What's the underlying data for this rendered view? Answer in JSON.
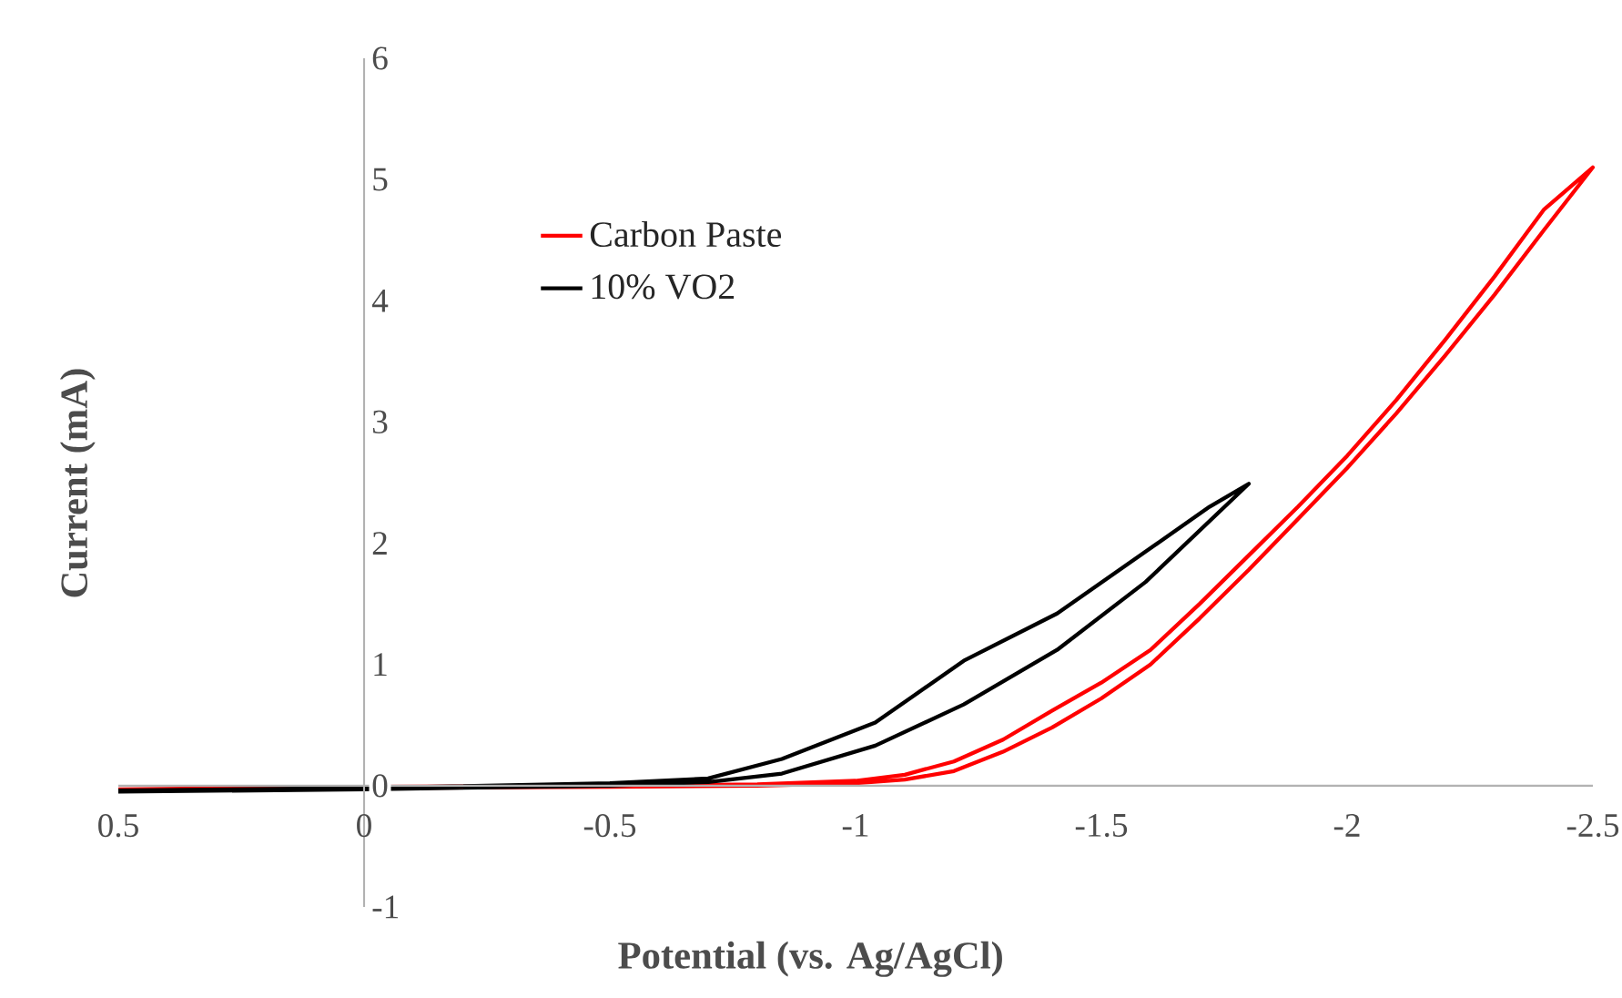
{
  "chart_data": {
    "type": "line",
    "xlabel": "Potential (vs. Ag/AgCl)",
    "ylabel": "Current (mA)",
    "xlim": [
      0.5,
      -2.5
    ],
    "xticks": [
      0.5,
      0,
      -0.5,
      -1,
      -1.5,
      -2,
      -2.5
    ],
    "ylim": [
      -1,
      6
    ],
    "yticks": [
      -1,
      0,
      1,
      2,
      3,
      4,
      5,
      6
    ],
    "grid": false,
    "legend": "top left",
    "marker": "none",
    "line_style": "solid",
    "series": [
      {
        "name": "Carbon Paste",
        "color": "#ff0000",
        "x": [
          0.5,
          0,
          -0.5,
          -0.8,
          -1.0,
          -1.1,
          -1.2,
          -1.3,
          -1.4,
          -1.5,
          -1.6,
          -1.7,
          -1.8,
          -1.9,
          -2.0,
          -2.1,
          -2.2,
          -2.3,
          -2.4,
          -2.5,
          -2.4,
          -2.3,
          -2.2,
          -2.1,
          -2.0,
          -1.9,
          -1.8,
          -1.7,
          -1.6,
          -1.5,
          -1.4,
          -1.3,
          -1.2,
          -1.1,
          -1.0,
          -0.8,
          -0.5,
          0,
          0.5
        ],
        "values": [
          -0.04,
          -0.02,
          -0.01,
          0,
          0.02,
          0.05,
          0.12,
          0.28,
          0.48,
          0.72,
          1.0,
          1.38,
          1.78,
          2.2,
          2.62,
          3.07,
          3.55,
          4.05,
          4.58,
          5.1,
          4.75,
          4.2,
          3.68,
          3.18,
          2.72,
          2.3,
          1.9,
          1.5,
          1.12,
          0.85,
          0.62,
          0.38,
          0.2,
          0.09,
          0.04,
          0.01,
          0,
          -0.01,
          -0.03
        ]
      },
      {
        "name": "10% VO2",
        "color": "#000000",
        "x": [
          0.5,
          0,
          -0.5,
          -0.7,
          -0.85,
          -1.04,
          -1.22,
          -1.41,
          -1.59,
          -1.8,
          -1.72,
          -1.59,
          -1.41,
          -1.22,
          -1.04,
          -0.85,
          -0.7,
          -0.5,
          0,
          0.5
        ],
        "values": [
          -0.05,
          -0.03,
          0,
          0.03,
          0.1,
          0.33,
          0.67,
          1.12,
          1.68,
          2.49,
          2.3,
          1.93,
          1.42,
          1.03,
          0.52,
          0.22,
          0.06,
          0.02,
          -0.02,
          -0.04
        ]
      }
    ]
  }
}
